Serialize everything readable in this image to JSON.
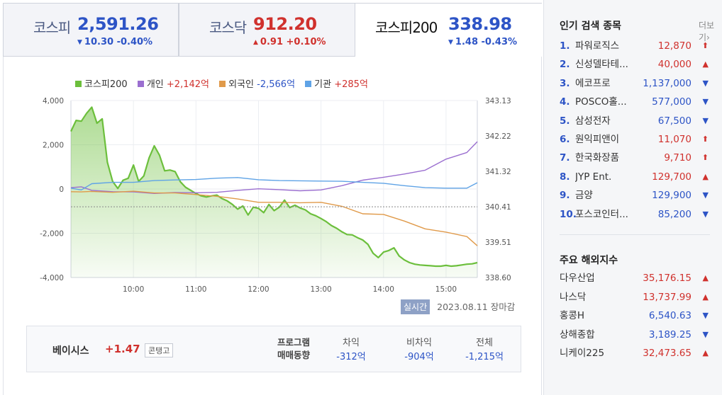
{
  "indices": [
    {
      "name": "코스피",
      "value": "2,591.26",
      "change": "10.30 -0.40%",
      "direction": "down"
    },
    {
      "name": "코스닥",
      "value": "912.20",
      "change": "0.91 +0.10%",
      "direction": "up"
    },
    {
      "name": "코스피200",
      "value": "338.98",
      "change": "1.48 -0.43%",
      "direction": "down"
    }
  ],
  "legend": {
    "kospi200": {
      "label": "코스피200"
    },
    "individual": {
      "label": "개인",
      "value": "+2,142억"
    },
    "foreign": {
      "label": "외국인",
      "value": "-2,566억"
    },
    "institution": {
      "label": "기관",
      "value": "+285억"
    }
  },
  "colors": {
    "kospi200": "#6cbf3c",
    "individual": "#9b6fd0",
    "foreign": "#e09a4a",
    "institution": "#5fa3e6",
    "up": "#d0312d",
    "down": "#2d54c6"
  },
  "chart_data": {
    "type": "line",
    "x_ticks": [
      "10:00",
      "11:00",
      "12:00",
      "13:00",
      "14:00",
      "15:00"
    ],
    "x_range_minutes": [
      0,
      390
    ],
    "y_left_ticks": [
      "4,000",
      "2,000",
      "0",
      "-2,000",
      "-4,000"
    ],
    "y_left_range": [
      -4000,
      4000
    ],
    "y_right_ticks": [
      "343.13",
      "342.22",
      "341.32",
      "340.41",
      "339.51",
      "338.60"
    ],
    "y_right_range": [
      338.6,
      343.13
    ],
    "reference_line_right": 340.41,
    "series": [
      {
        "name": "코스피200",
        "axis": "right",
        "style": "area",
        "x": [
          0,
          5,
          10,
          15,
          20,
          25,
          30,
          35,
          40,
          45,
          50,
          55,
          60,
          65,
          70,
          75,
          80,
          85,
          90,
          95,
          100,
          105,
          110,
          115,
          120,
          125,
          130,
          135,
          140,
          145,
          150,
          155,
          160,
          165,
          170,
          175,
          180,
          185,
          190,
          195,
          200,
          205,
          210,
          215,
          220,
          225,
          230,
          235,
          240,
          245,
          250,
          255,
          260,
          265,
          270,
          275,
          280,
          285,
          290,
          295,
          300,
          305,
          310,
          315,
          320,
          325,
          330,
          335,
          340,
          345,
          350,
          355,
          360,
          365,
          370,
          375,
          380,
          385,
          390
        ],
        "y": [
          342.34,
          342.62,
          342.6,
          342.8,
          342.96,
          342.55,
          342.66,
          341.55,
          341.06,
          340.88,
          341.09,
          341.14,
          341.48,
          341.06,
          341.2,
          341.66,
          341.97,
          341.73,
          341.33,
          341.35,
          341.31,
          341.05,
          340.91,
          340.83,
          340.75,
          340.69,
          340.66,
          340.69,
          340.71,
          340.62,
          340.56,
          340.47,
          340.35,
          340.43,
          340.2,
          340.4,
          340.37,
          340.26,
          340.47,
          340.31,
          340.4,
          340.58,
          340.39,
          340.45,
          340.38,
          340.33,
          340.23,
          340.18,
          340.11,
          340.03,
          339.93,
          339.86,
          339.77,
          339.7,
          339.69,
          339.62,
          339.56,
          339.45,
          339.22,
          339.11,
          339.25,
          339.29,
          339.36,
          339.15,
          339.05,
          338.98,
          338.94,
          338.92,
          338.91,
          338.9,
          338.89,
          338.89,
          338.91,
          338.89,
          338.9,
          338.92,
          338.94,
          338.95,
          338.98
        ]
      },
      {
        "name": "개인",
        "axis": "left",
        "x": [
          0,
          10,
          20,
          40,
          60,
          80,
          100,
          120,
          140,
          160,
          180,
          200,
          220,
          240,
          260,
          280,
          300,
          320,
          340,
          360,
          380,
          390
        ],
        "y": [
          60,
          100,
          -60,
          -120,
          -130,
          -200,
          -160,
          -170,
          -150,
          -60,
          10,
          -30,
          -80,
          -40,
          150,
          400,
          530,
          680,
          850,
          1350,
          1650,
          2142
        ]
      },
      {
        "name": "외국인",
        "axis": "left",
        "x": [
          0,
          10,
          20,
          40,
          60,
          80,
          100,
          120,
          140,
          160,
          180,
          200,
          220,
          240,
          260,
          280,
          300,
          320,
          340,
          360,
          380,
          390
        ],
        "y": [
          -120,
          -130,
          -110,
          -150,
          -100,
          -180,
          -180,
          -250,
          -330,
          -450,
          -600,
          -600,
          -620,
          -600,
          -780,
          -1120,
          -1150,
          -1450,
          -1800,
          -1950,
          -2150,
          -2566
        ]
      },
      {
        "name": "기관",
        "axis": "left",
        "x": [
          0,
          10,
          20,
          40,
          60,
          80,
          100,
          120,
          140,
          160,
          180,
          200,
          220,
          240,
          260,
          280,
          300,
          320,
          340,
          360,
          380,
          390
        ],
        "y": [
          40,
          -40,
          240,
          300,
          300,
          380,
          410,
          430,
          490,
          520,
          420,
          380,
          370,
          360,
          350,
          300,
          260,
          150,
          60,
          40,
          40,
          285
        ]
      }
    ]
  },
  "chart_footer": {
    "realtime": "실시간",
    "datetime": "2023.08.11",
    "status": "장마감"
  },
  "basis": {
    "label": "베이시스",
    "value": "+1.47",
    "tag": "콘탱고"
  },
  "program": {
    "title_line1": "프로그램",
    "title_line2": "매매동향",
    "columns": [
      {
        "header": "차익",
        "value": "-312억"
      },
      {
        "header": "비차익",
        "value": "-904억"
      },
      {
        "header": "전체",
        "value": "-1,215억"
      }
    ]
  },
  "popular": {
    "title": "인기 검색 종목",
    "more": "더보기",
    "items": [
      {
        "rank": "1.",
        "name": "파워로직스",
        "price": "12,870",
        "dir": "up",
        "icon": "upper-limit-arrow-icon"
      },
      {
        "rank": "2.",
        "name": "신성델타테...",
        "price": "40,000",
        "dir": "up",
        "icon": "up-triangle-icon"
      },
      {
        "rank": "3.",
        "name": "에코프로",
        "price": "1,137,000",
        "dir": "down",
        "icon": "down-triangle-icon"
      },
      {
        "rank": "4.",
        "name": "POSCO홀...",
        "price": "577,000",
        "dir": "down",
        "icon": "down-triangle-icon"
      },
      {
        "rank": "5.",
        "name": "삼성전자",
        "price": "67,500",
        "dir": "down",
        "icon": "down-triangle-icon"
      },
      {
        "rank": "6.",
        "name": "원익피앤이",
        "price": "11,070",
        "dir": "up",
        "icon": "upper-limit-arrow-icon"
      },
      {
        "rank": "7.",
        "name": "한국화장품",
        "price": "9,710",
        "dir": "up",
        "icon": "upper-limit-arrow-icon"
      },
      {
        "rank": "8.",
        "name": "JYP Ent.",
        "price": "129,700",
        "dir": "up",
        "icon": "up-triangle-icon"
      },
      {
        "rank": "9.",
        "name": "금양",
        "price": "129,900",
        "dir": "down",
        "icon": "down-triangle-icon"
      },
      {
        "rank": "10.",
        "name": "포스코인터...",
        "price": "85,200",
        "dir": "down",
        "icon": "down-triangle-icon"
      }
    ]
  },
  "global": {
    "title": "주요 해외지수",
    "items": [
      {
        "name": "다우산업",
        "price": "35,176.15",
        "dir": "up"
      },
      {
        "name": "나스닥",
        "price": "13,737.99",
        "dir": "up"
      },
      {
        "name": "홍콩H",
        "price": "6,540.63",
        "dir": "down"
      },
      {
        "name": "상해종합",
        "price": "3,189.25",
        "dir": "down"
      },
      {
        "name": "니케이225",
        "price": "32,473.65",
        "dir": "up"
      }
    ]
  }
}
